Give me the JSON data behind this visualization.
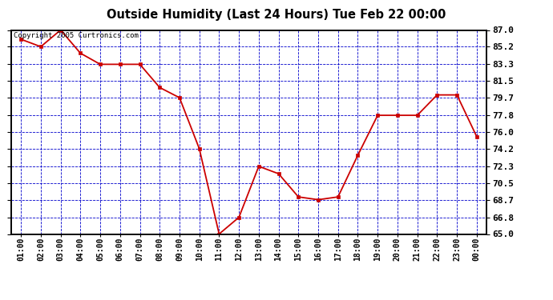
{
  "title": "Outside Humidity (Last 24 Hours) Tue Feb 22 00:00",
  "copyright": "Copyright 2005 Curtronics.com",
  "x_labels": [
    "01:00",
    "02:00",
    "03:00",
    "04:00",
    "05:00",
    "06:00",
    "07:00",
    "08:00",
    "09:00",
    "10:00",
    "11:00",
    "12:00",
    "13:00",
    "14:00",
    "15:00",
    "16:00",
    "17:00",
    "18:00",
    "19:00",
    "20:00",
    "21:00",
    "22:00",
    "23:00",
    "00:00"
  ],
  "y_values": [
    86.0,
    85.2,
    87.0,
    84.5,
    83.3,
    83.3,
    83.3,
    80.8,
    79.7,
    74.2,
    65.0,
    66.8,
    72.3,
    71.5,
    69.0,
    68.7,
    69.0,
    73.5,
    77.8,
    77.8,
    77.8,
    80.0,
    80.0,
    75.5
  ],
  "line_color": "#cc0000",
  "marker_color": "#cc0000",
  "fig_bg_color": "#ffffff",
  "plot_bg_color": "#ffffff",
  "grid_color": "#0000cc",
  "title_color": "#000000",
  "border_color": "#000000",
  "y_tick_values": [
    65.0,
    66.8,
    68.7,
    70.5,
    72.3,
    74.2,
    76.0,
    77.8,
    79.7,
    81.5,
    83.3,
    85.2,
    87.0
  ],
  "y_tick_labels": [
    "65.0",
    "66.8",
    "68.7",
    "70.5",
    "72.3",
    "74.2",
    "76.0",
    "77.8",
    "79.7",
    "81.5",
    "83.3",
    "85.2",
    "87.0"
  ],
  "ylim": [
    65.0,
    87.0
  ]
}
